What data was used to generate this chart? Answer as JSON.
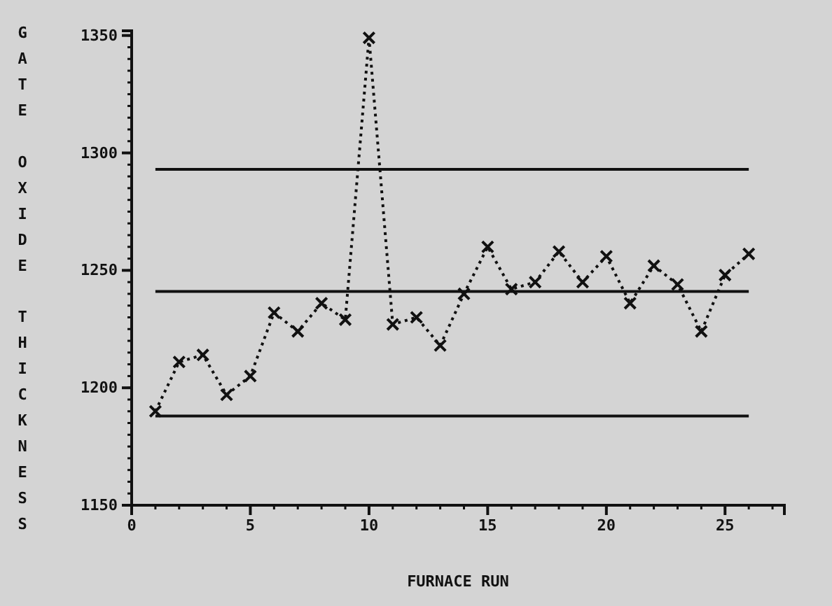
{
  "chart_data": {
    "type": "line",
    "xlabel": "FURNACE RUN",
    "ylabel": "GATE OXIDE THICKNESS",
    "x": [
      1,
      2,
      3,
      4,
      5,
      6,
      7,
      8,
      9,
      10,
      11,
      12,
      13,
      14,
      15,
      16,
      17,
      18,
      19,
      20,
      21,
      22,
      23,
      24,
      25,
      26
    ],
    "values": [
      1190,
      1211,
      1214,
      1197,
      1205,
      1232,
      1224,
      1236,
      1229,
      1349,
      1227,
      1230,
      1218,
      1240,
      1260,
      1242,
      1245,
      1258,
      1245,
      1256,
      1236,
      1252,
      1244,
      1224,
      1248,
      1257
    ],
    "color": "#111111",
    "marker": "cross",
    "line_style": "dotted",
    "xlim": [
      0,
      27.5
    ],
    "xticks": [
      0,
      5,
      10,
      15,
      20,
      25
    ],
    "ylim": [
      1150,
      1352
    ],
    "yticks": [
      1150,
      1200,
      1250,
      1300,
      1350
    ],
    "ref_lines": [
      {
        "axis": "y",
        "value": 1293,
        "color": "#111111"
      },
      {
        "axis": "y",
        "value": 1241,
        "color": "#111111"
      },
      {
        "axis": "y",
        "value": 1188,
        "color": "#111111"
      }
    ],
    "grid": false
  }
}
